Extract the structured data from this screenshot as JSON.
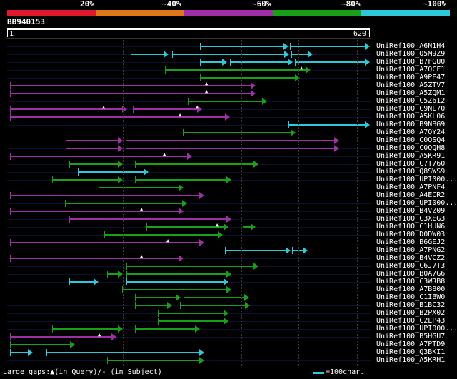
{
  "header": {
    "percent_labels": [
      "20%",
      "~40%",
      "~60%",
      "~80%",
      "~100%"
    ],
    "color_scale": [
      "#e0182c",
      "#e07818",
      "#a02ea6",
      "#19a019",
      "#2ec9d9"
    ]
  },
  "query": {
    "title": "BB940153",
    "start": "1",
    "end": "620"
  },
  "hits": [
    {
      "label": "UniRef100_A6N1H4",
      "color": "#2ec9d9",
      "segments": [
        [
          280,
          404
        ],
        [
          406,
          518
        ]
      ]
    },
    {
      "label": "UniRef100_Q5M9Z9",
      "color": "#2ec9d9",
      "segments": [
        [
          183,
          236
        ],
        [
          241,
          405
        ],
        [
          408,
          438
        ]
      ]
    },
    {
      "label": "UniRef100_B7FGU0",
      "color": "#2ec9d9",
      "segments": [
        [
          280,
          318
        ],
        [
          322,
          410
        ],
        [
          413,
          518
        ]
      ]
    },
    {
      "label": "UniRef100_A7QCF1",
      "color": "#19a019",
      "segments": [
        [
          231,
          435
        ]
      ],
      "marks": [
        423
      ]
    },
    {
      "label": "UniRef100_A9PE47",
      "color": "#19a019",
      "segments": [
        [
          280,
          420
        ]
      ]
    },
    {
      "label": "UniRef100_A5ZTV7",
      "color": "#a02ea6",
      "segments": [
        [
          14,
          358
        ]
      ],
      "marks": [
        290
      ]
    },
    {
      "label": "UniRef100_A5ZQM1",
      "color": "#a02ea6",
      "segments": [
        [
          14,
          358
        ]
      ],
      "marks": [
        290
      ]
    },
    {
      "label": "UniRef100_C5Z612",
      "color": "#19a019",
      "segments": [
        [
          263,
          374
        ]
      ]
    },
    {
      "label": "UniRef100_C9NL70",
      "color": "#a02ea6",
      "segments": [
        [
          14,
          178
        ],
        [
          186,
          283
        ]
      ],
      "marks": [
        146,
        277
      ]
    },
    {
      "label": "UniRef100_A5KL06",
      "color": "#a02ea6",
      "segments": [
        [
          14,
          322
        ]
      ],
      "marks": [
        253
      ]
    },
    {
      "label": "UniRef100_B9NBG9",
      "color": "#2ec9d9",
      "segments": [
        [
          404,
          518
        ]
      ]
    },
    {
      "label": "UniRef100_A7QY24",
      "color": "#19a019",
      "segments": [
        [
          256,
          414
        ]
      ]
    },
    {
      "label": "UniRef100_C0QSQ4",
      "color": "#a02ea6",
      "segments": [
        [
          92,
          172
        ],
        [
          176,
          475
        ]
      ]
    },
    {
      "label": "UniRef100_C0QQH8",
      "color": "#a02ea6",
      "segments": [
        [
          92,
          172
        ],
        [
          176,
          475
        ]
      ]
    },
    {
      "label": "UniRef100_A5KR91",
      "color": "#a02ea6",
      "segments": [
        [
          14,
          269
        ]
      ],
      "marks": [
        231
      ]
    },
    {
      "label": "UniRef100_C7T760",
      "color": "#19a019",
      "segments": [
        [
          97,
          172
        ],
        [
          189,
          362
        ]
      ]
    },
    {
      "label": "UniRef100_Q8SWS9",
      "color": "#2ec9d9",
      "segments": [
        [
          109,
          208
        ]
      ]
    },
    {
      "label": "UniRef100_UPI000...",
      "color": "#19a019",
      "segments": [
        [
          73,
          172
        ],
        [
          189,
          324
        ]
      ]
    },
    {
      "label": "UniRef100_A7PNF4",
      "color": "#19a019",
      "segments": [
        [
          138,
          257
        ]
      ]
    },
    {
      "label": "UniRef100_A4ECR2",
      "color": "#a02ea6",
      "segments": [
        [
          14,
          286
        ]
      ]
    },
    {
      "label": "UniRef100_UPI000...",
      "color": "#19a019",
      "segments": [
        [
          91,
          262
        ]
      ]
    },
    {
      "label": "UniRef100_B4VZ09",
      "color": "#a02ea6",
      "segments": [
        [
          14,
          257
        ]
      ],
      "marks": [
        199
      ]
    },
    {
      "label": "UniRef100_C3XEG3",
      "color": "#a02ea6",
      "segments": [
        [
          97,
          324
        ]
      ]
    },
    {
      "label": "UniRef100_C1HUN6",
      "color": "#19a019",
      "segments": [
        [
          205,
          320
        ],
        [
          340,
          358
        ]
      ],
      "marks": [
        305
      ]
    },
    {
      "label": "UniRef100_D0DW03",
      "color": "#19a019",
      "segments": [
        [
          146,
          312
        ]
      ]
    },
    {
      "label": "UniRef100_B6GEJ2",
      "color": "#a02ea6",
      "segments": [
        [
          14,
          286
        ]
      ],
      "marks": [
        236
      ]
    },
    {
      "label": "UniRef100_A7PNG2",
      "color": "#2ec9d9",
      "segments": [
        [
          315,
          407
        ],
        [
          409,
          431
        ]
      ]
    },
    {
      "label": "UniRef100_B4VCZ2",
      "color": "#a02ea6",
      "segments": [
        [
          14,
          257
        ]
      ],
      "marks": [
        199
      ]
    },
    {
      "label": "UniRef100_C6J7T3",
      "color": "#19a019",
      "segments": [
        [
          177,
          362
        ]
      ]
    },
    {
      "label": "UniRef100_B0A7G6",
      "color": "#19a019",
      "segments": [
        [
          150,
          172
        ],
        [
          177,
          324
        ]
      ]
    },
    {
      "label": "UniRef100_C3WRB8",
      "color": "#2ec9d9",
      "segments": [
        [
          97,
          138
        ],
        [
          177,
          320
        ]
      ]
    },
    {
      "label": "UniRef100_A7B800",
      "color": "#19a019",
      "segments": [
        [
          171,
          324
        ]
      ]
    },
    {
      "label": "UniRef100_C1IBW0",
      "color": "#19a019",
      "segments": [
        [
          189,
          253
        ],
        [
          257,
          349
        ]
      ]
    },
    {
      "label": "UniRef100_B1BC32",
      "color": "#19a019",
      "segments": [
        [
          189,
          241
        ],
        [
          252,
          350
        ]
      ]
    },
    {
      "label": "UniRef100_B2PX02",
      "color": "#19a019",
      "segments": [
        [
          221,
          320
        ]
      ]
    },
    {
      "label": "UniRef100_C2LP43",
      "color": "#19a019",
      "segments": [
        [
          221,
          320
        ]
      ]
    },
    {
      "label": "UniRef100_UPI000...",
      "color": "#19a019",
      "segments": [
        [
          73,
          172
        ],
        [
          189,
          280
        ]
      ]
    },
    {
      "label": "UniRef100_B5HGU7",
      "color": "#a02ea6",
      "segments": [
        [
          14,
          163
        ]
      ],
      "marks": [
        140
      ]
    },
    {
      "label": "UniRef100_A7PTD9",
      "color": "#19a019",
      "segments": [
        [
          14,
          105
        ]
      ]
    },
    {
      "label": "UniRef100_Q3BKI1",
      "color": "#2ec9d9",
      "segments": [
        [
          14,
          46
        ],
        [
          65,
          286
        ]
      ]
    },
    {
      "label": "UniRef100_A5KRH1",
      "color": "#19a019",
      "segments": [
        [
          150,
          286
        ]
      ]
    }
  ],
  "legend": {
    "gaps_text": "Large gaps:▲(in Query)/- (in Subject)",
    "scale_text": "=100char."
  }
}
